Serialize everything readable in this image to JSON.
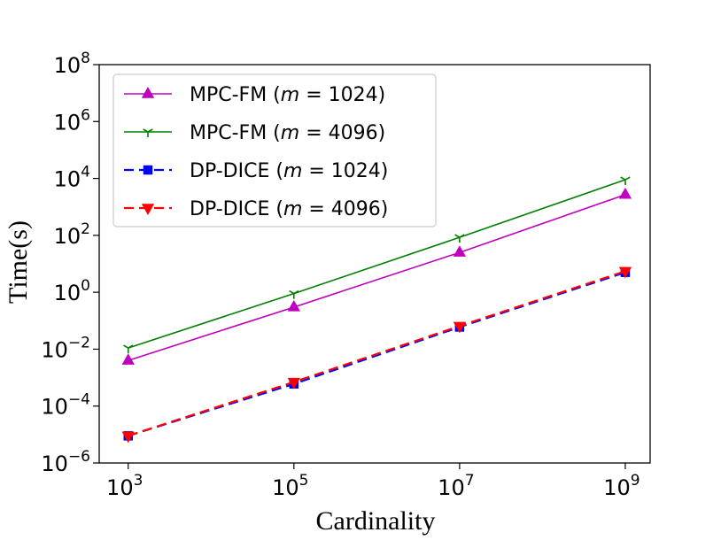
{
  "chart_data": {
    "type": "line",
    "title": "",
    "xlabel": "Cardinality",
    "ylabel": "Time(s)",
    "xscale": "log",
    "yscale": "log",
    "xlim_log10": [
      2.65,
      9.3
    ],
    "ylim_log10": [
      -6,
      8
    ],
    "x": [
      1000,
      100000,
      10000000,
      1000000000
    ],
    "xticks": [
      {
        "base": "10",
        "exp": "3",
        "log10": 3
      },
      {
        "base": "10",
        "exp": "5",
        "log10": 5
      },
      {
        "base": "10",
        "exp": "7",
        "log10": 7
      },
      {
        "base": "10",
        "exp": "9",
        "log10": 9
      }
    ],
    "yticks": [
      {
        "base": "10",
        "exp": "8",
        "log10": 8
      },
      {
        "base": "10",
        "exp": "6",
        "log10": 6
      },
      {
        "base": "10",
        "exp": "4",
        "log10": 4
      },
      {
        "base": "10",
        "exp": "2",
        "log10": 2
      },
      {
        "base": "10",
        "exp": "0",
        "log10": 0
      },
      {
        "base": "10",
        "exp": "−2",
        "log10": -2
      },
      {
        "base": "10",
        "exp": "−4",
        "log10": -4
      },
      {
        "base": "10",
        "exp": "−6",
        "log10": -6
      }
    ],
    "legend_position": "upper-left",
    "series": [
      {
        "name": "MPC-FM (m = 1024)",
        "label_prefix": "MPC-FM (",
        "label_var": "m",
        "label_suffix": " = 1024)",
        "color": "#bf00bf",
        "marker": "triangle-up",
        "linestyle": "solid",
        "values": [
          0.004,
          0.3,
          25,
          2700
        ]
      },
      {
        "name": "MPC-FM (m = 4096)",
        "label_prefix": "MPC-FM (",
        "label_var": "m",
        "label_suffix": " = 4096)",
        "color": "#008000",
        "marker": "tri-down",
        "linestyle": "solid",
        "values": [
          0.011,
          0.9,
          85,
          9000
        ]
      },
      {
        "name": "DP-DICE (m = 1024)",
        "label_prefix": "DP-DICE (",
        "label_var": "m",
        "label_suffix": " = 1024)",
        "color": "#0000ff",
        "marker": "square",
        "linestyle": "dashed",
        "values": [
          9e-06,
          0.0006,
          0.06,
          5
        ]
      },
      {
        "name": "DP-DICE (m = 4096)",
        "label_prefix": "DP-DICE (",
        "label_var": "m",
        "label_suffix": " = 4096)",
        "color": "#ff0000",
        "marker": "triangle-down",
        "linestyle": "dashed",
        "values": [
          9e-06,
          0.0007,
          0.065,
          5.5
        ]
      }
    ]
  }
}
